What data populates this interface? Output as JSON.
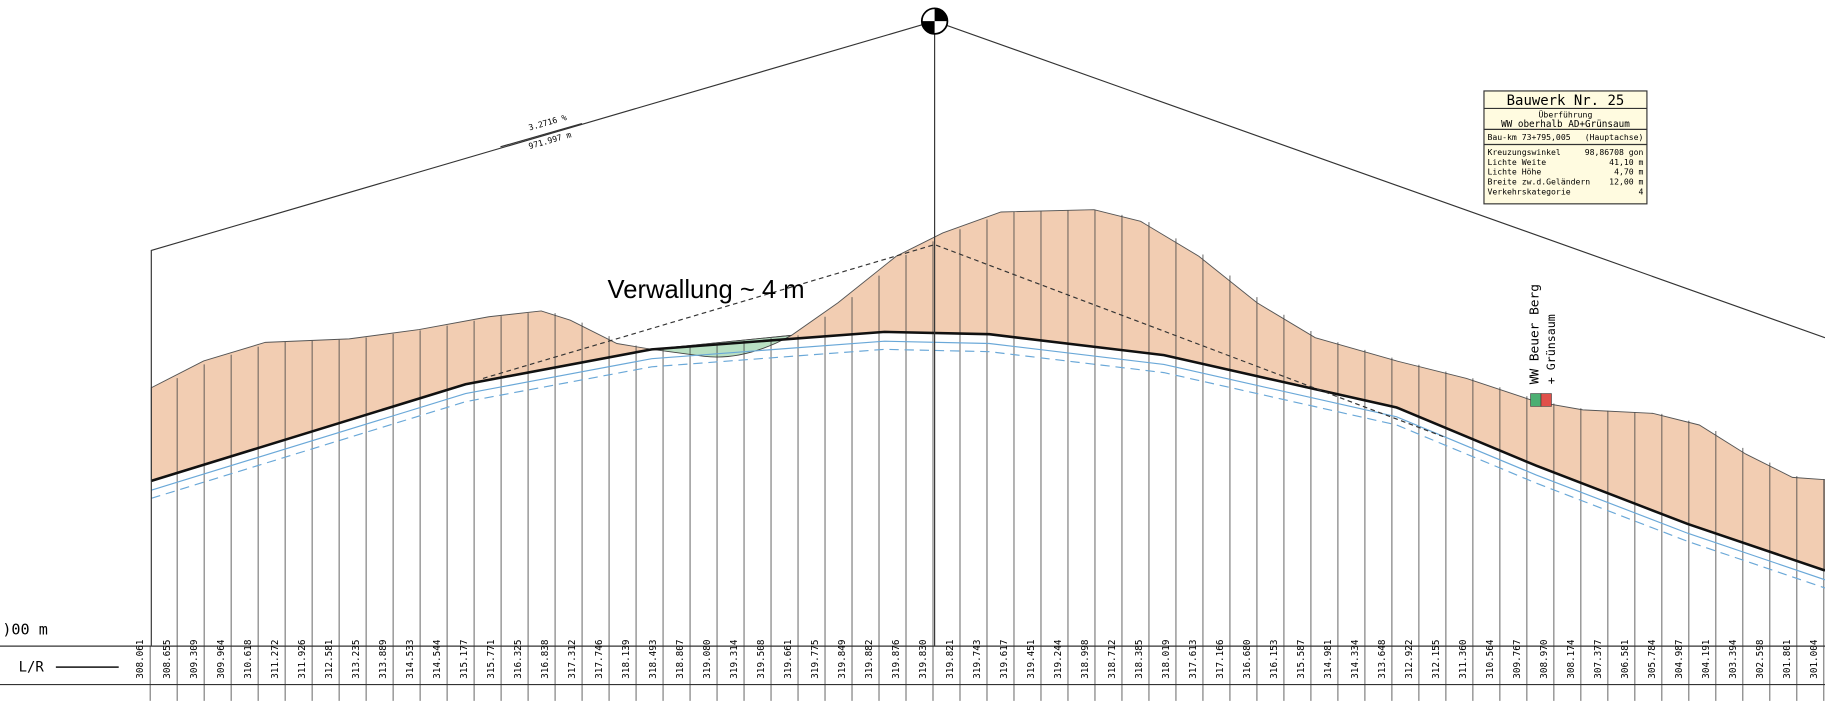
{
  "annotations": {
    "grade": "3.2716 %",
    "length": "971.997 m",
    "berm": "Verwallung ~ 4 m",
    "wall_name": "WW Beuer Berg",
    "wall_suffix": "+ Grünsaum",
    "scale_label": ")00 m",
    "row_label": "L/R"
  },
  "info_box": {
    "title": "Bauwerk Nr. 25",
    "subtitle": "Überführung",
    "name": "WW oberhalb AD+Grünsaum",
    "station": "Bau-km 73+795,005",
    "axis": "(Hauptachse)",
    "rows": [
      [
        "Kreuzungswinkel",
        "98,86708 gon"
      ],
      [
        "Lichte Weite",
        "41,10 m"
      ],
      [
        "Lichte Höhe",
        "4,70 m"
      ],
      [
        "Breite zw.d.Geländern",
        "12,00 m"
      ],
      [
        "Verkehrskategorie",
        "4"
      ]
    ]
  },
  "station_labels": [
    "308.061",
    "308.655",
    "309.309",
    "309.964",
    "310.618",
    "311.272",
    "311.926",
    "312.581",
    "313.235",
    "313.889",
    "314.533",
    "314.544",
    "315.177",
    "315.771",
    "316.325",
    "316.838",
    "317.312",
    "317.746",
    "318.139",
    "318.493",
    "318.807",
    "319.080",
    "319.314",
    "319.508",
    "319.661",
    "319.775",
    "319.849",
    "319.882",
    "319.876",
    "319.830",
    "319.821",
    "319.743",
    "319.617",
    "319.451",
    "319.244",
    "318.998",
    "318.712",
    "318.385",
    "318.019",
    "317.613",
    "317.166",
    "316.680",
    "316.153",
    "315.587",
    "314.981",
    "314.334",
    "313.648",
    "312.922",
    "312.155",
    "311.360",
    "310.564",
    "309.767",
    "308.970",
    "308.174",
    "307.377",
    "306.581",
    "305.784",
    "304.987",
    "304.191",
    "303.394",
    "302.598",
    "301.801",
    "301.004"
  ]
}
